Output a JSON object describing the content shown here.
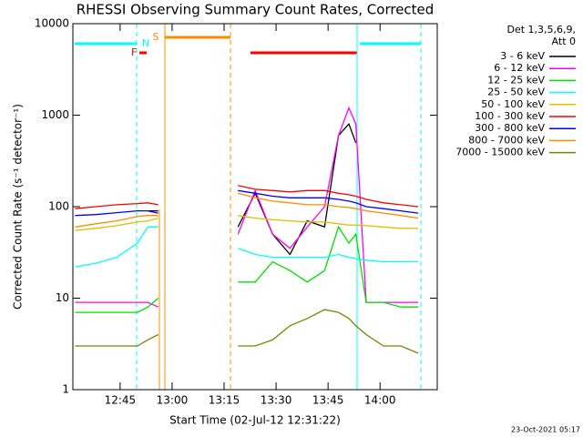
{
  "chart_data": {
    "type": "line",
    "title": "RHESSI Observing Summary Count Rates, Corrected",
    "xlabel": "Start Time (02-Jul-12 12:31:22)",
    "ylabel": "Corrected Count Rate (s⁻¹ detector⁻¹)",
    "legend_title": [
      "Det 1,3,5,6,9,",
      "Att 0"
    ],
    "flag_labels": [
      "F",
      "N",
      "S"
    ],
    "footer": "23-Oct-2021 05:17",
    "log_y": true,
    "xlim": [
      751.37,
      856.5
    ],
    "ylim": [
      1,
      10000
    ],
    "yticks": [
      1,
      10,
      100,
      1000,
      10000
    ],
    "xticks": [
      {
        "value": 765,
        "label": "12:45"
      },
      {
        "value": 780,
        "label": "13:00"
      },
      {
        "value": 795,
        "label": "13:15"
      },
      {
        "value": 810,
        "label": "13:30"
      },
      {
        "value": 825,
        "label": "13:45"
      },
      {
        "value": 840,
        "label": "14:00"
      }
    ],
    "x": [
      752,
      758,
      764,
      770,
      773,
      776,
      787,
      799,
      804,
      809,
      814,
      819,
      824,
      828,
      831,
      833,
      836,
      841,
      846,
      851
    ],
    "series": [
      {
        "name": "3 - 6 keV",
        "color": "#000000",
        "values": [
          null,
          null,
          null,
          null,
          90,
          90,
          null,
          60,
          140,
          50,
          30,
          70,
          60,
          600,
          800,
          500,
          null,
          null,
          null,
          null
        ]
      },
      {
        "name": "6 - 12 keV",
        "color": "#ff00ff",
        "values": [
          9,
          9,
          9,
          9,
          9,
          8,
          null,
          50,
          150,
          50,
          35,
          60,
          100,
          600,
          1200,
          800,
          9,
          9,
          9,
          9
        ]
      },
      {
        "name": "12 - 25 keV",
        "color": "#00e000",
        "values": [
          7,
          7,
          7,
          7,
          8,
          10,
          null,
          15,
          15,
          25,
          20,
          15,
          20,
          60,
          40,
          50,
          9,
          9,
          8,
          8
        ]
      },
      {
        "name": "25 - 50 keV",
        "color": "#00ffff",
        "values": [
          22,
          24,
          28,
          40,
          60,
          60,
          null,
          35,
          30,
          28,
          28,
          28,
          28,
          30,
          28,
          27,
          26,
          25,
          25,
          25
        ]
      },
      {
        "name": "50 - 100 keV",
        "color": "#e0c000",
        "values": [
          55,
          58,
          62,
          68,
          70,
          75,
          null,
          80,
          75,
          72,
          70,
          68,
          68,
          65,
          63,
          63,
          62,
          60,
          58,
          58
        ]
      },
      {
        "name": "100 - 300 keV",
        "color": "#ff0000",
        "values": [
          95,
          100,
          105,
          108,
          110,
          105,
          null,
          170,
          155,
          150,
          145,
          150,
          150,
          140,
          135,
          130,
          120,
          110,
          105,
          100
        ]
      },
      {
        "name": "300 - 800 keV",
        "color": "#0000ff",
        "values": [
          80,
          82,
          86,
          90,
          90,
          85,
          null,
          150,
          140,
          130,
          125,
          125,
          125,
          120,
          115,
          110,
          100,
          95,
          90,
          85
        ]
      },
      {
        "name": "800 - 7000 keV",
        "color": "#ff8c00",
        "values": [
          60,
          65,
          70,
          78,
          80,
          80,
          null,
          140,
          125,
          115,
          110,
          105,
          105,
          100,
          98,
          95,
          90,
          85,
          80,
          75
        ]
      },
      {
        "name": "7000 - 15000 keV",
        "color": "#808000",
        "values": [
          3,
          3,
          3,
          3,
          3.5,
          4,
          null,
          3,
          3,
          3.5,
          5,
          6,
          7.5,
          7,
          6,
          5,
          4,
          3,
          3,
          2.5
        ]
      }
    ]
  }
}
